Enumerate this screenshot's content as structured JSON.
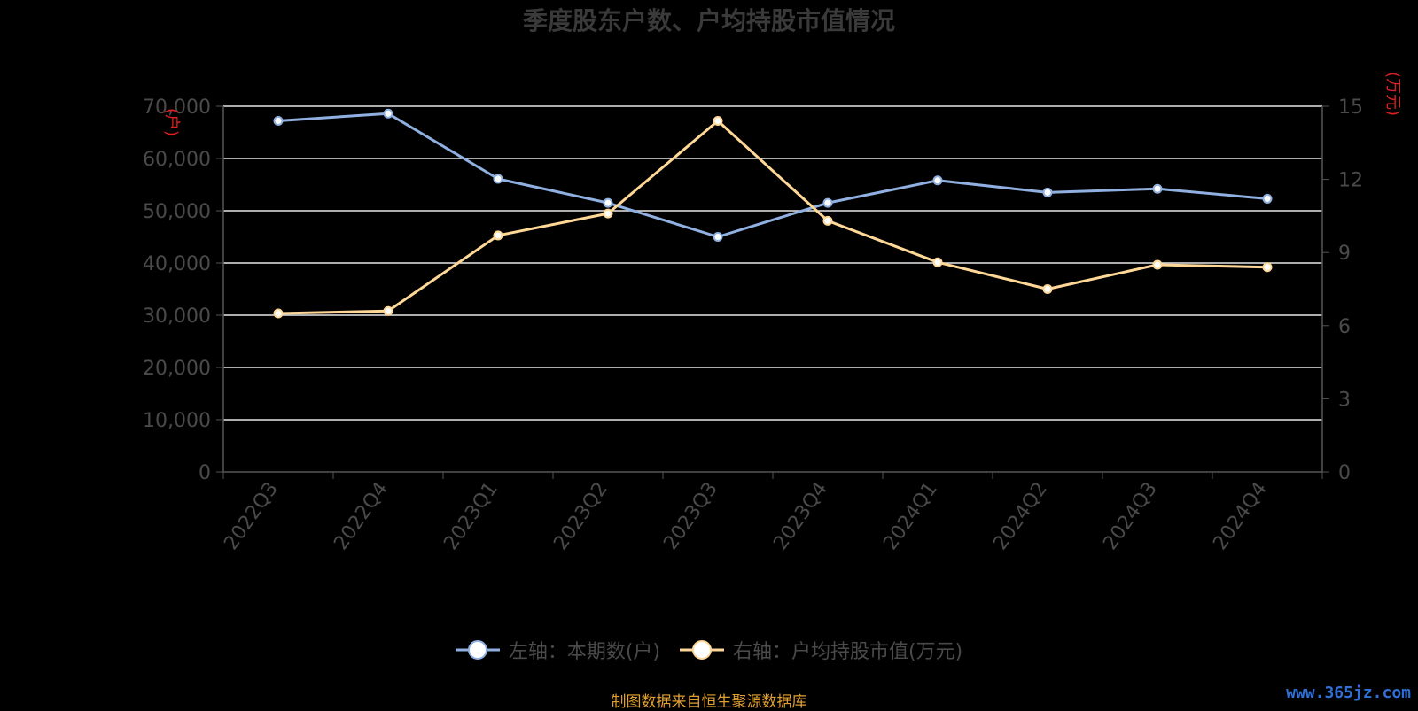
{
  "chart_data": {
    "type": "line",
    "title": "季度股东户数、户均持股市值情况",
    "categories": [
      "2022Q3",
      "2022Q4",
      "2023Q1",
      "2023Q2",
      "2023Q3",
      "2023Q4",
      "2024Q1",
      "2024Q2",
      "2024Q3",
      "2024Q4"
    ],
    "y_left": {
      "unit": "户",
      "ylim": [
        0,
        70000
      ],
      "ticks": [
        "0",
        "10,000",
        "20,000",
        "30,000",
        "40,000",
        "50,000",
        "60,000",
        "70,000"
      ]
    },
    "y_right": {
      "unit": "万元",
      "ylim": [
        0,
        15
      ],
      "ticks": [
        "0",
        "3",
        "6",
        "9",
        "12",
        "15"
      ]
    },
    "grid": true,
    "legend_position": "bottom",
    "series": [
      {
        "name": "左轴：本期数(户)",
        "axis": "left",
        "color": "#8fb0e0",
        "values": [
          67200,
          68600,
          56100,
          51500,
          45000,
          51500,
          55800,
          53500,
          54200,
          52300
        ]
      },
      {
        "name": "右轴：户均持股市值(万元)",
        "axis": "right",
        "color": "#ffd898",
        "values": [
          6.5,
          6.6,
          9.7,
          10.6,
          14.4,
          10.3,
          8.6,
          7.5,
          8.5,
          8.4
        ]
      }
    ]
  },
  "footer": {
    "source": "制图数据来自恒生聚源数据库",
    "watermark": "www.365jz.com"
  }
}
